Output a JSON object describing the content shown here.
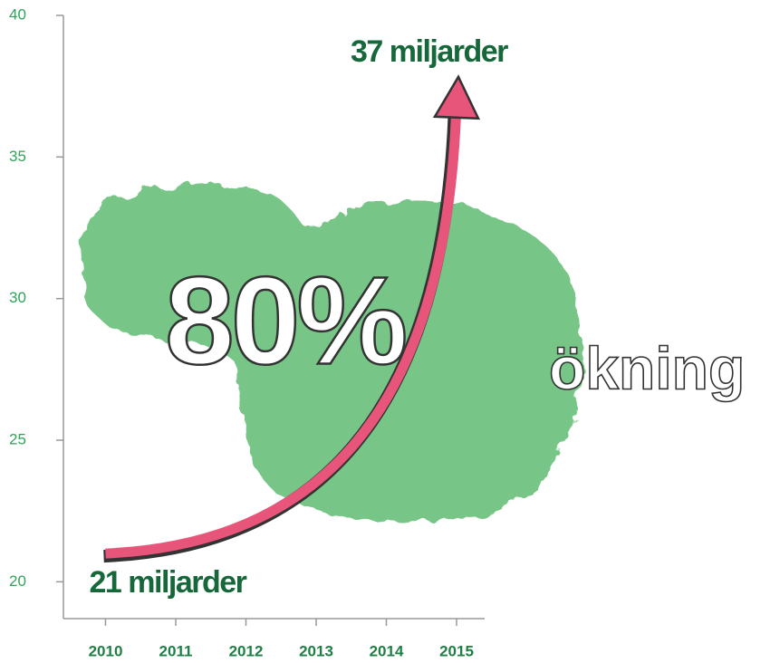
{
  "chart_data": {
    "type": "line",
    "annotations": [
      "80%",
      "ökning"
    ],
    "x": [
      2010,
      2015
    ],
    "values": [
      21,
      37
    ],
    "value_labels": [
      "21 miljarder",
      "37 miljarder"
    ],
    "color": "#e8557a",
    "xlim": [
      2009.4,
      2015.4
    ],
    "xticks": [
      2010,
      2011,
      2012,
      2013,
      2014,
      2015
    ],
    "ylim": [
      18.7,
      40
    ],
    "yticks": [
      20,
      25,
      30,
      35,
      40
    ]
  }
}
